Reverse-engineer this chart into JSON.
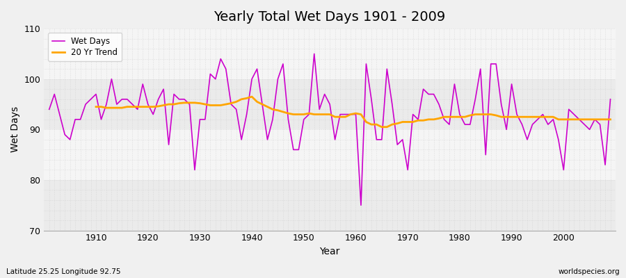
{
  "title": "Yearly Total Wet Days 1901 - 2009",
  "xlabel": "Year",
  "ylabel": "Wet Days",
  "footnote_left": "Latitude 25.25 Longitude 92.75",
  "footnote_right": "worldspecies.org",
  "ylim": [
    70,
    110
  ],
  "yticks": [
    70,
    80,
    90,
    100,
    110
  ],
  "bg_color": "#f0f0f0",
  "plot_bg": "#f5f5f5",
  "wet_days_color": "#cc00cc",
  "trend_color": "#FFA500",
  "years": [
    1901,
    1902,
    1903,
    1904,
    1905,
    1906,
    1907,
    1908,
    1909,
    1910,
    1911,
    1912,
    1913,
    1914,
    1915,
    1916,
    1917,
    1918,
    1919,
    1920,
    1921,
    1922,
    1923,
    1924,
    1925,
    1926,
    1927,
    1928,
    1929,
    1930,
    1931,
    1932,
    1933,
    1934,
    1935,
    1936,
    1937,
    1938,
    1939,
    1940,
    1941,
    1942,
    1943,
    1944,
    1945,
    1946,
    1947,
    1948,
    1949,
    1950,
    1951,
    1952,
    1953,
    1954,
    1955,
    1956,
    1957,
    1958,
    1959,
    1960,
    1961,
    1962,
    1963,
    1964,
    1965,
    1966,
    1967,
    1968,
    1969,
    1970,
    1971,
    1972,
    1973,
    1974,
    1975,
    1976,
    1977,
    1978,
    1979,
    1980,
    1981,
    1982,
    1983,
    1984,
    1985,
    1986,
    1987,
    1988,
    1989,
    1990,
    1991,
    1992,
    1993,
    1994,
    1995,
    1996,
    1997,
    1998,
    1999,
    2000,
    2001,
    2002,
    2003,
    2004,
    2005,
    2006,
    2007,
    2008,
    2009
  ],
  "wet_days": [
    94,
    97,
    93,
    89,
    88,
    92,
    92,
    95,
    96,
    97,
    92,
    95,
    100,
    95,
    96,
    96,
    95,
    94,
    99,
    95,
    93,
    96,
    98,
    87,
    97,
    96,
    96,
    95,
    82,
    92,
    92,
    101,
    100,
    104,
    102,
    95,
    94,
    88,
    93,
    100,
    102,
    95,
    88,
    92,
    100,
    103,
    92,
    86,
    86,
    92,
    93,
    105,
    94,
    97,
    95,
    88,
    93,
    93,
    93,
    93,
    75,
    103,
    96,
    88,
    88,
    102,
    95,
    87,
    88,
    82,
    93,
    92,
    98,
    97,
    97,
    95,
    92,
    91,
    99,
    93,
    91,
    91,
    96,
    102,
    85,
    103,
    103,
    95,
    90,
    99,
    93,
    91,
    88,
    91,
    92,
    93,
    91,
    92,
    88,
    82,
    94,
    93,
    92,
    91,
    90,
    92,
    91,
    83,
    96
  ],
  "trend": [
    null,
    null,
    null,
    null,
    null,
    null,
    null,
    null,
    null,
    94.5,
    94.5,
    94.3,
    94.3,
    94.3,
    94.3,
    94.5,
    94.5,
    94.5,
    94.5,
    94.5,
    94.5,
    94.6,
    94.8,
    95.0,
    95.0,
    95.2,
    95.3,
    95.3,
    95.3,
    95.2,
    95.0,
    94.8,
    94.8,
    94.8,
    95.0,
    95.2,
    95.5,
    96.0,
    96.2,
    96.5,
    95.5,
    95.0,
    94.5,
    94.0,
    93.8,
    93.5,
    93.2,
    93.0,
    93.0,
    93.0,
    93.2,
    93.0,
    93.0,
    93.0,
    93.0,
    92.5,
    92.5,
    92.5,
    93.0,
    93.2,
    93.0,
    91.5,
    91.0,
    91.0,
    90.5,
    90.5,
    91.0,
    91.2,
    91.5,
    91.5,
    91.5,
    91.8,
    91.8,
    92.0,
    92.0,
    92.2,
    92.5,
    92.5,
    92.5,
    92.5,
    92.5,
    92.8,
    93.0,
    93.0,
    93.0,
    93.0,
    92.8,
    92.5,
    92.5,
    92.5,
    92.5,
    92.5,
    92.5,
    92.5,
    92.5,
    92.5,
    92.5,
    92.5,
    92.0,
    92.0,
    92.0,
    92.0,
    92.0,
    92.0,
    92.0,
    92.0,
    92.0,
    92.0,
    92.0
  ]
}
